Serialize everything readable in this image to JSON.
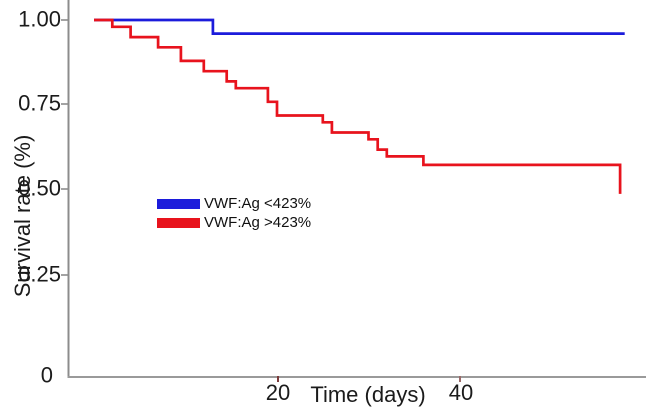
{
  "figure": {
    "y_axis": {
      "label": "Survival rate (%)",
      "tick_labels": [
        "1.00",
        "0.75",
        "0.50",
        "0.25",
        "0"
      ]
    },
    "x_axis": {
      "label": "Time (days)",
      "tick_labels": [
        "20",
        "40"
      ]
    },
    "legend": {
      "items": [
        {
          "label": "VWF:Ag <423%",
          "color": "#1c1cdb"
        },
        {
          "label": "VWF:Ag >423%",
          "color": "#e8131d"
        }
      ]
    },
    "axis_color": "#8c8c8c",
    "x_tick_color": "#7c3b3b"
  },
  "chart_data": {
    "type": "line",
    "subtype": "kaplan-meier-step",
    "title": "",
    "xlabel": "Time (days)",
    "ylabel": "Survival rate (%)",
    "xlim": [
      0,
      60
    ],
    "ylim": [
      0,
      1.0
    ],
    "x_ticks": [
      20,
      40
    ],
    "y_ticks": [
      1.0,
      0.75,
      0.5,
      0.25,
      0
    ],
    "grid": false,
    "legend_position": "inside-left-middle",
    "series": [
      {
        "name": "VWF:Ag <423%",
        "color": "#1c1cdb",
        "points": [
          [
            0,
            1.0
          ],
          [
            13,
            1.0
          ],
          [
            13,
            0.96
          ],
          [
            58,
            0.96
          ]
        ]
      },
      {
        "name": "VWF:Ag >423%",
        "color": "#e8131d",
        "points": [
          [
            0,
            1.0
          ],
          [
            2,
            1.0
          ],
          [
            2,
            0.98
          ],
          [
            4,
            0.98
          ],
          [
            4,
            0.95
          ],
          [
            7,
            0.95
          ],
          [
            7,
            0.92
          ],
          [
            9.5,
            0.92
          ],
          [
            9.5,
            0.88
          ],
          [
            12,
            0.88
          ],
          [
            12,
            0.85
          ],
          [
            14.5,
            0.85
          ],
          [
            14.5,
            0.82
          ],
          [
            15.5,
            0.82
          ],
          [
            15.5,
            0.8
          ],
          [
            19,
            0.8
          ],
          [
            19,
            0.76
          ],
          [
            20,
            0.76
          ],
          [
            20,
            0.72
          ],
          [
            25,
            0.72
          ],
          [
            25,
            0.7
          ],
          [
            26,
            0.7
          ],
          [
            26,
            0.67
          ],
          [
            30,
            0.67
          ],
          [
            30,
            0.65
          ],
          [
            31,
            0.65
          ],
          [
            31,
            0.62
          ],
          [
            32,
            0.62
          ],
          [
            32,
            0.6
          ],
          [
            36,
            0.6
          ],
          [
            36,
            0.575
          ],
          [
            57.5,
            0.575
          ],
          [
            57.5,
            0.49
          ]
        ]
      }
    ]
  }
}
